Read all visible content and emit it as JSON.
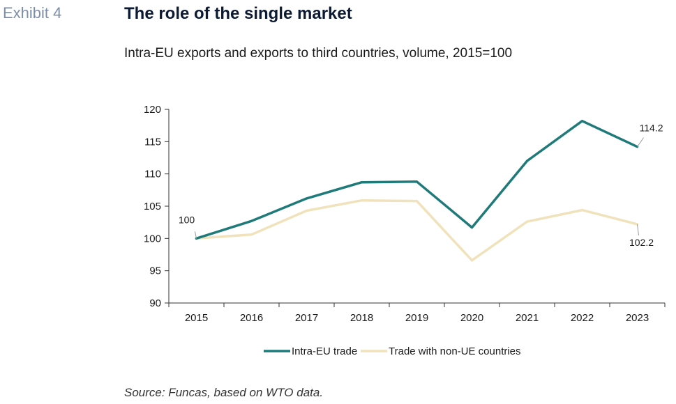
{
  "header": {
    "exhibit": "Exhibit 4",
    "title": "The role of the single market",
    "subtitle": "Intra-EU exports and exports to third countries, volume, 2015=100"
  },
  "footer": {
    "source": "Source: Funcas, based on WTO data."
  },
  "colors": {
    "intra_eu": "#1f7a7a",
    "non_ue": "#f0e2bb",
    "axis": "#333333"
  },
  "chart_data": {
    "type": "line",
    "title": "The role of the single market",
    "subtitle": "Intra-EU exports and exports to third countries, volume, 2015=100",
    "xlabel": "",
    "ylabel": "",
    "categories": [
      "2015",
      "2016",
      "2017",
      "2018",
      "2019",
      "2020",
      "2021",
      "2022",
      "2023"
    ],
    "ylim": [
      90,
      120
    ],
    "yticks": [
      90,
      95,
      100,
      105,
      110,
      115,
      120
    ],
    "grid": false,
    "legend_position": "bottom",
    "series": [
      {
        "name": "Intra-EU trade",
        "color": "#1f7a7a",
        "values": [
          100,
          102.7,
          106.2,
          108.7,
          108.8,
          101.7,
          112.0,
          118.2,
          114.2
        ]
      },
      {
        "name": "Trade with non-UE countries",
        "color": "#f0e2bb",
        "values": [
          100,
          100.6,
          104.3,
          105.9,
          105.8,
          96.6,
          102.6,
          104.4,
          102.2
        ]
      }
    ],
    "annotations": [
      {
        "text": "100",
        "series": 0,
        "index": 0
      },
      {
        "text": "114.2",
        "series": 0,
        "index": 8
      },
      {
        "text": "102.2",
        "series": 1,
        "index": 8
      }
    ]
  }
}
